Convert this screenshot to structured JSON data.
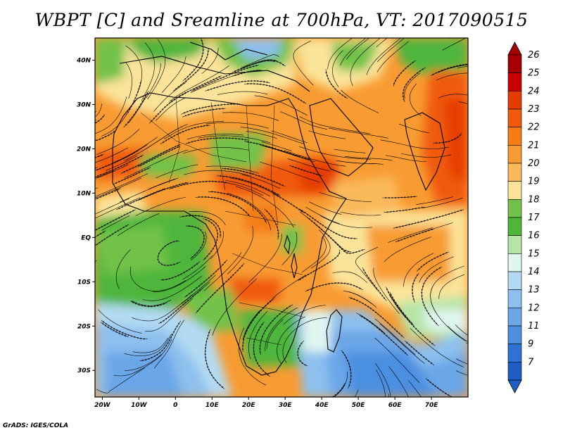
{
  "title": "WBPT [C] and Sreamline at 700hPa, VT: 2017090515",
  "credit": "GrADS: IGES/COLA",
  "map": {
    "lon_range": [
      -22,
      80
    ],
    "lat_range": [
      -36,
      45
    ],
    "lon_ticks": [
      {
        "value": -20,
        "label": "20W"
      },
      {
        "value": -10,
        "label": "10W"
      },
      {
        "value": 0,
        "label": "0"
      },
      {
        "value": 10,
        "label": "10E"
      },
      {
        "value": 20,
        "label": "20E"
      },
      {
        "value": 30,
        "label": "30E"
      },
      {
        "value": 40,
        "label": "40E"
      },
      {
        "value": 50,
        "label": "50E"
      },
      {
        "value": 60,
        "label": "60E"
      },
      {
        "value": 70,
        "label": "70E"
      }
    ],
    "lat_ticks": [
      {
        "value": 40,
        "label": "40N"
      },
      {
        "value": 30,
        "label": "30N"
      },
      {
        "value": 20,
        "label": "20N"
      },
      {
        "value": 10,
        "label": "10N"
      },
      {
        "value": 0,
        "label": "EQ"
      },
      {
        "value": -10,
        "label": "10S"
      },
      {
        "value": -20,
        "label": "20S"
      },
      {
        "value": -30,
        "label": "30S"
      }
    ]
  },
  "colorbar": {
    "levels": [
      {
        "label": "26",
        "color": "#a50000"
      },
      {
        "label": "25",
        "color": "#c80000"
      },
      {
        "label": "24",
        "color": "#e63c00"
      },
      {
        "label": "23",
        "color": "#f05a0a"
      },
      {
        "label": "22",
        "color": "#f57d14"
      },
      {
        "label": "21",
        "color": "#f89b32"
      },
      {
        "label": "20",
        "color": "#fab95a"
      },
      {
        "label": "19",
        "color": "#fbe49a"
      },
      {
        "label": "18",
        "color": "#72c24a"
      },
      {
        "label": "17",
        "color": "#4fb63c"
      },
      {
        "label": "16",
        "color": "#b6e4a8"
      },
      {
        "label": "15",
        "color": "#e0f6f0"
      },
      {
        "label": "14",
        "color": "#b4daf3"
      },
      {
        "label": "13",
        "color": "#8dc0ee"
      },
      {
        "label": "12",
        "color": "#6aa6e8"
      },
      {
        "label": "11",
        "color": "#4c8fe0"
      },
      {
        "label": "9",
        "color": "#2f72d2"
      },
      {
        "label": "7",
        "color": "#1f5cc4"
      }
    ],
    "top_color": "#a50000",
    "bottom_color": "#1f5cc4"
  }
}
